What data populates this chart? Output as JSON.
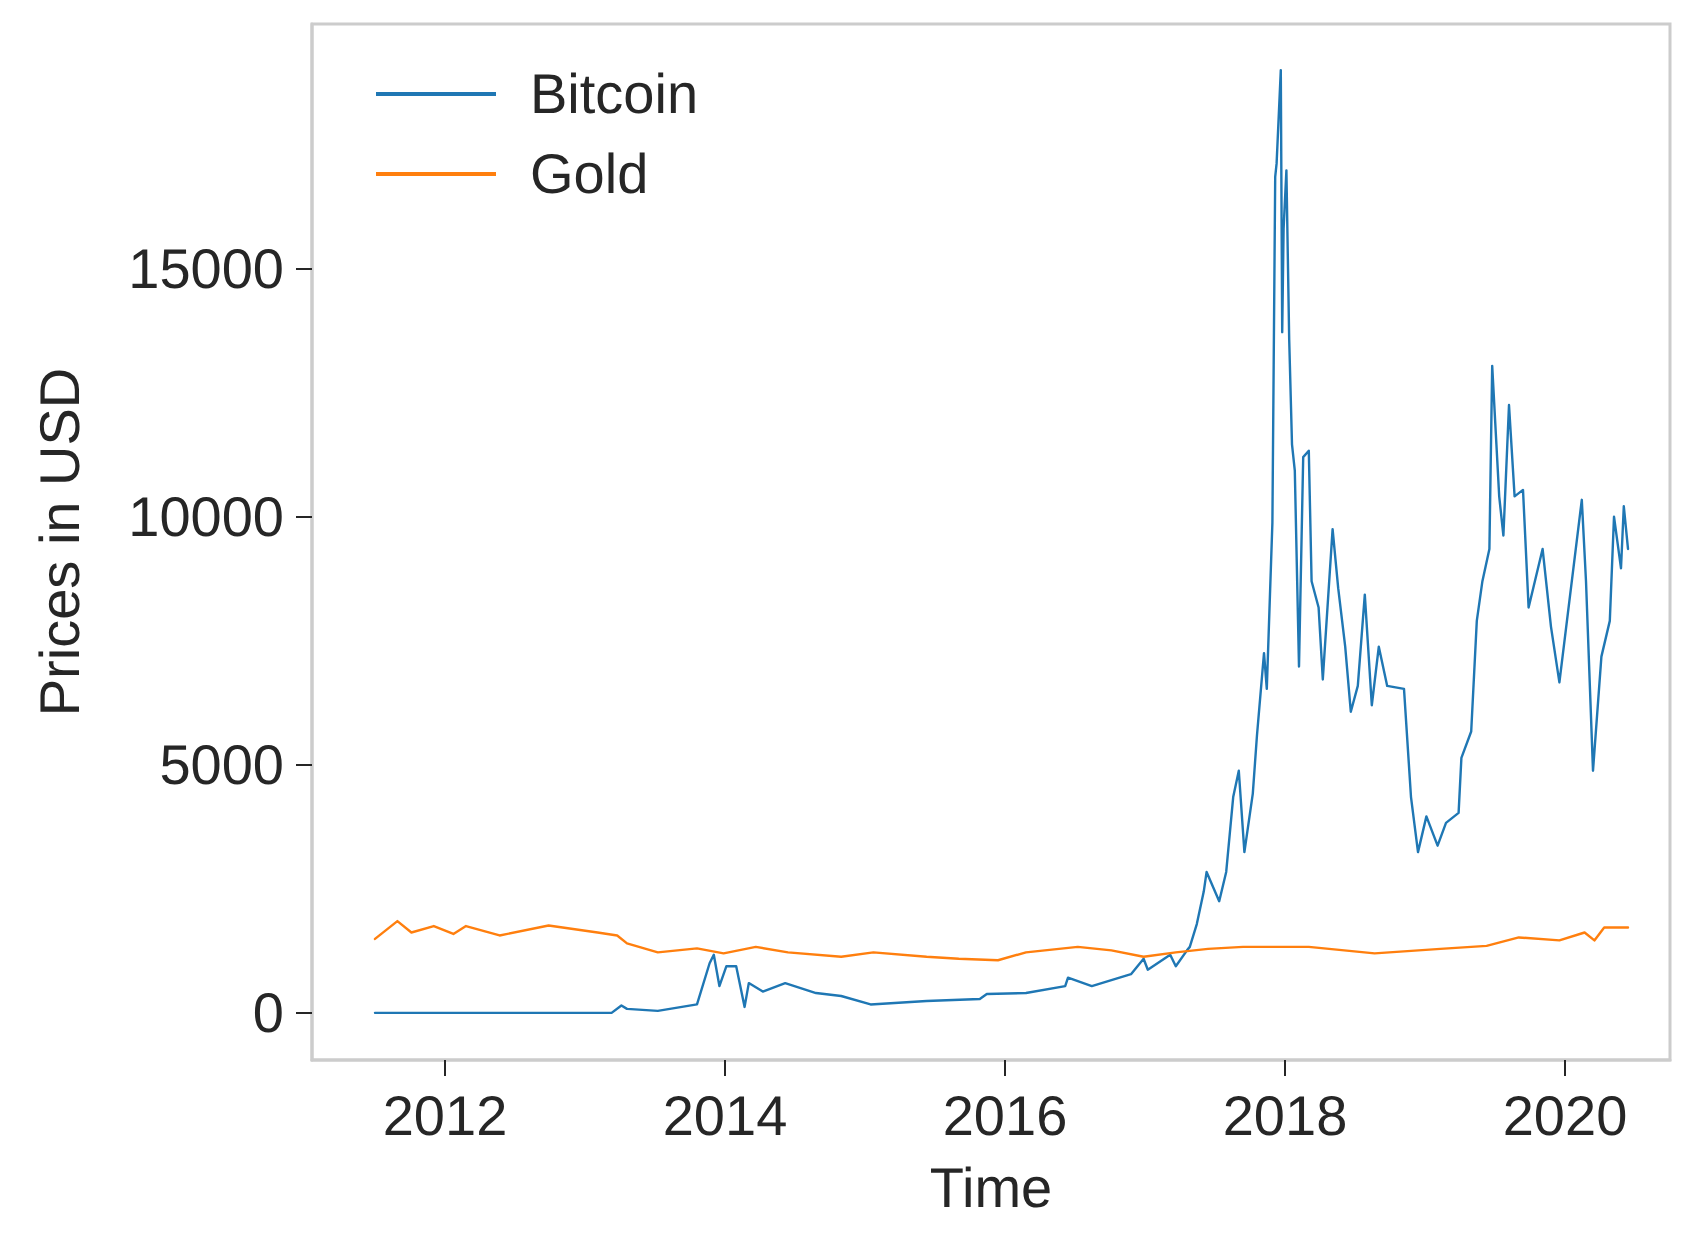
{
  "chart_data": {
    "type": "line",
    "xlabel": "Time",
    "ylabel": "Prices in USD",
    "xlim": [
      2011.05,
      2020.75
    ],
    "xticks": [
      2012,
      2014,
      2016,
      2018,
      2020
    ],
    "ylim": [
      -950,
      19930
    ],
    "yticks": [
      0,
      5000,
      10000,
      15000
    ],
    "grid": false,
    "legend": "top left",
    "marker": "none",
    "line_style": "solid",
    "series": [
      {
        "name": "Bitcoin",
        "color": "#1f77b4",
        "x": [
          2011.5,
          2013.19,
          2013.26,
          2013.3,
          2013.52,
          2013.8,
          2013.89,
          2013.92,
          2013.96,
          2014.01,
          2014.08,
          2014.14,
          2014.17,
          2014.27,
          2014.43,
          2014.65,
          2014.83,
          2015.04,
          2015.44,
          2015.82,
          2015.87,
          2016.15,
          2016.43,
          2016.45,
          2016.62,
          2016.9,
          2016.99,
          2017.02,
          2017.18,
          2017.22,
          2017.3,
          2017.32,
          2017.37,
          2017.42,
          2017.44,
          2017.53,
          2017.58,
          2017.63,
          2017.67,
          2017.71,
          2017.77,
          2017.8,
          2017.85,
          2017.87,
          2017.91,
          2017.93,
          2017.94,
          2017.97,
          2017.98,
          2017.99,
          2018.01,
          2018.03,
          2018.05,
          2018.07,
          2018.1,
          2018.13,
          2018.17,
          2018.19,
          2018.24,
          2018.27,
          2018.34,
          2018.38,
          2018.43,
          2018.47,
          2018.52,
          2018.57,
          2018.62,
          2018.67,
          2018.73,
          2018.85,
          2018.9,
          2018.95,
          2019.01,
          2019.09,
          2019.15,
          2019.24,
          2019.26,
          2019.33,
          2019.37,
          2019.41,
          2019.46,
          2019.48,
          2019.51,
          2019.53,
          2019.56,
          2019.6,
          2019.64,
          2019.7,
          2019.74,
          2019.84,
          2019.9,
          2019.96,
          2020.02,
          2020.12,
          2020.15,
          2020.2,
          2020.26,
          2020.32,
          2020.35,
          2020.4,
          2020.42,
          2020.45
        ],
        "values": [
          0,
          0,
          150,
          80,
          40,
          170,
          1000,
          1170,
          540,
          940,
          940,
          120,
          600,
          430,
          600,
          400,
          340,
          170,
          240,
          280,
          380,
          400,
          540,
          710,
          540,
          780,
          1090,
          870,
          1170,
          940,
          1260,
          1330,
          1790,
          2450,
          2840,
          2250,
          2840,
          4350,
          4880,
          3240,
          4420,
          5600,
          7250,
          6530,
          9880,
          16850,
          17120,
          19000,
          13720,
          15800,
          16980,
          13570,
          11460,
          10930,
          6980,
          11200,
          11330,
          8700,
          8170,
          6720,
          9750,
          8560,
          7380,
          6070,
          6590,
          8430,
          6200,
          7380,
          6590,
          6530,
          4350,
          3240,
          3960,
          3370,
          3830,
          4030,
          5140,
          5670,
          7900,
          8700,
          9350,
          13040,
          11460,
          10410,
          9620,
          12250,
          10410,
          10540,
          8170,
          9350,
          7780,
          6660,
          8040,
          10340,
          8700,
          4880,
          7180,
          7900,
          10000,
          8960,
          10210,
          9350
        ]
      },
      {
        "name": "Gold",
        "color": "#ff7f0e",
        "x": [
          2011.5,
          2011.66,
          2011.76,
          2011.92,
          2012.06,
          2012.15,
          2012.39,
          2012.74,
          2013.09,
          2013.23,
          2013.3,
          2013.52,
          2013.8,
          2013.99,
          2014.22,
          2014.45,
          2014.83,
          2015.06,
          2015.44,
          2015.67,
          2015.95,
          2016.15,
          2016.52,
          2016.76,
          2016.99,
          2017.22,
          2017.45,
          2017.7,
          2018.17,
          2018.64,
          2019.11,
          2019.44,
          2019.67,
          2019.96,
          2020.14,
          2020.21,
          2020.28,
          2020.45
        ],
        "values": [
          1490,
          1850,
          1620,
          1750,
          1590,
          1750,
          1560,
          1760,
          1620,
          1560,
          1400,
          1220,
          1300,
          1200,
          1330,
          1220,
          1130,
          1220,
          1130,
          1090,
          1060,
          1220,
          1330,
          1260,
          1130,
          1220,
          1290,
          1330,
          1330,
          1200,
          1290,
          1350,
          1520,
          1460,
          1620,
          1460,
          1720,
          1720
        ]
      }
    ]
  }
}
